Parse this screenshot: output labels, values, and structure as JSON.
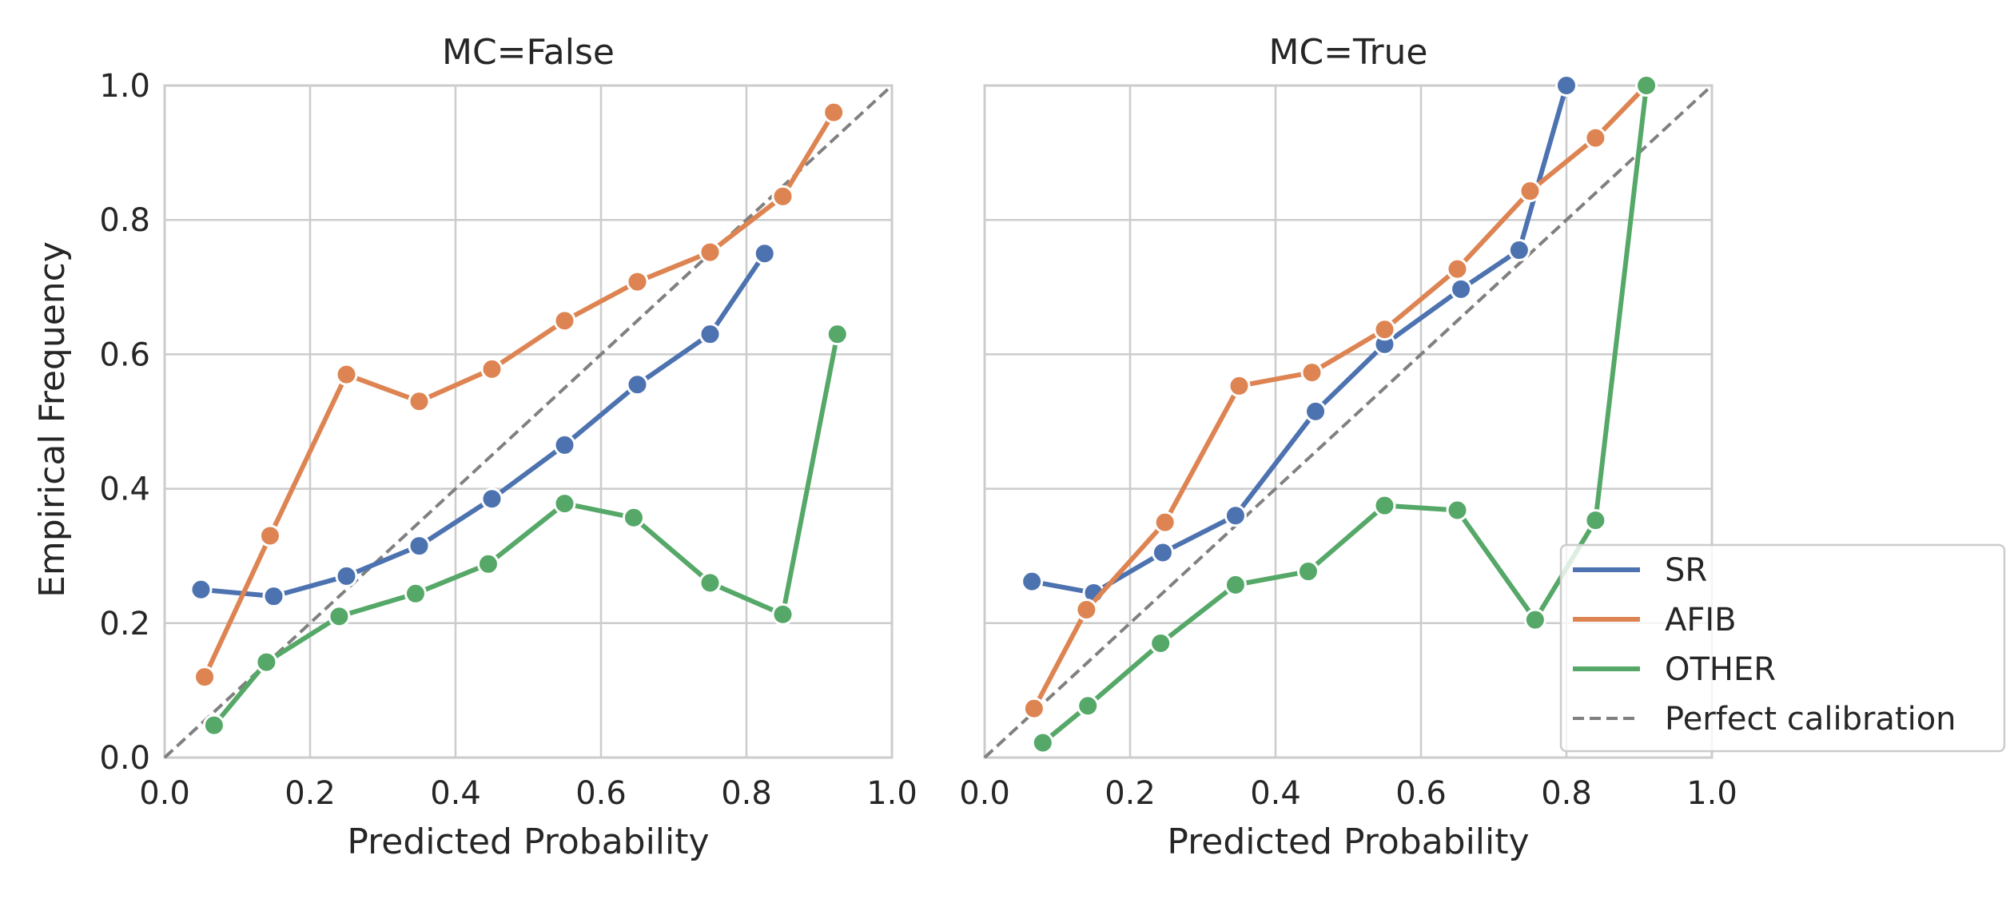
{
  "chart_data": {
    "type": "line",
    "ylabel": "Empirical Frequency",
    "shared_y": true,
    "grid": true,
    "xlim": [
      0,
      1
    ],
    "ylim": [
      0,
      1
    ],
    "ticks": [
      "0.0",
      "0.2",
      "0.4",
      "0.6",
      "0.8",
      "1.0"
    ],
    "tick_values": [
      0,
      0.2,
      0.4,
      0.6,
      0.8,
      1.0
    ],
    "legend": {
      "placement": "lower-right",
      "entries": [
        {
          "label": "SR",
          "color": "#4c72b0",
          "style": "solid"
        },
        {
          "label": "AFIB",
          "color": "#dd8452",
          "style": "solid"
        },
        {
          "label": "OTHER",
          "color": "#55a868",
          "style": "solid"
        },
        {
          "label": "Perfect calibration",
          "color": "#808080",
          "style": "dashed"
        }
      ]
    },
    "panels": [
      {
        "title": "MC=False",
        "xlabel": "Predicted Probability",
        "series": [
          {
            "name": "SR",
            "color": "#4c72b0",
            "x": [
              0.05,
              0.15,
              0.25,
              0.35,
              0.45,
              0.55,
              0.65,
              0.75,
              0.825
            ],
            "y": [
              0.25,
              0.24,
              0.27,
              0.315,
              0.385,
              0.465,
              0.555,
              0.63,
              0.75
            ]
          },
          {
            "name": "AFIB",
            "color": "#dd8452",
            "x": [
              0.055,
              0.145,
              0.25,
              0.35,
              0.45,
              0.55,
              0.65,
              0.75,
              0.85,
              0.92
            ],
            "y": [
              0.12,
              0.33,
              0.57,
              0.53,
              0.578,
              0.65,
              0.708,
              0.752,
              0.835,
              0.96
            ]
          },
          {
            "name": "OTHER",
            "color": "#55a868",
            "x": [
              0.068,
              0.14,
              0.24,
              0.345,
              0.445,
              0.55,
              0.645,
              0.75,
              0.85,
              0.925
            ],
            "y": [
              0.048,
              0.142,
              0.21,
              0.244,
              0.288,
              0.378,
              0.357,
              0.26,
              0.213,
              0.63
            ]
          }
        ]
      },
      {
        "title": "MC=True",
        "xlabel": "Predicted Probability",
        "series": [
          {
            "name": "SR",
            "color": "#4c72b0",
            "x": [
              0.065,
              0.15,
              0.245,
              0.345,
              0.455,
              0.55,
              0.655,
              0.735,
              0.8
            ],
            "y": [
              0.262,
              0.245,
              0.305,
              0.36,
              0.515,
              0.615,
              0.697,
              0.755,
              1.0
            ]
          },
          {
            "name": "AFIB",
            "color": "#dd8452",
            "x": [
              0.068,
              0.14,
              0.248,
              0.35,
              0.45,
              0.55,
              0.65,
              0.75,
              0.84,
              0.91
            ],
            "y": [
              0.073,
              0.22,
              0.35,
              0.553,
              0.573,
              0.637,
              0.727,
              0.843,
              0.922,
              1.0
            ]
          },
          {
            "name": "OTHER",
            "color": "#55a868",
            "x": [
              0.08,
              0.142,
              0.242,
              0.345,
              0.445,
              0.55,
              0.65,
              0.757,
              0.84,
              0.91
            ],
            "y": [
              0.022,
              0.077,
              0.17,
              0.257,
              0.277,
              0.375,
              0.368,
              0.205,
              0.353,
              1.0
            ]
          }
        ]
      }
    ]
  }
}
